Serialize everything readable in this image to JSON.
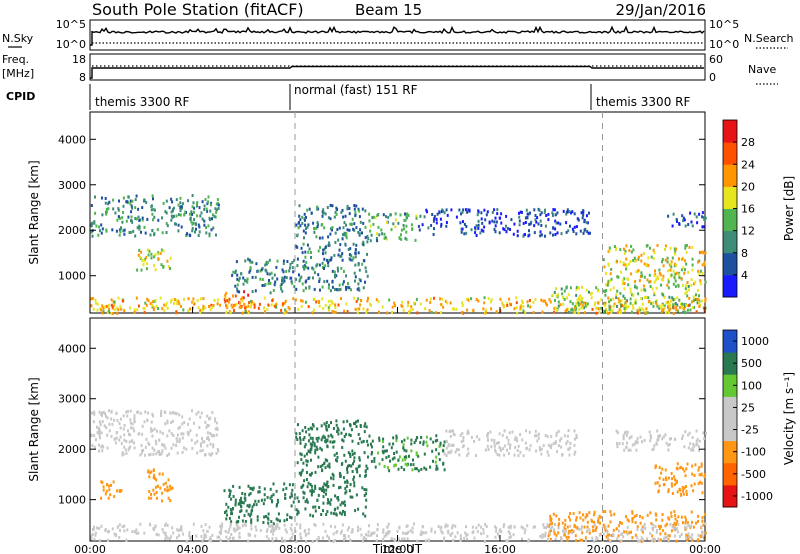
{
  "header": {
    "station": "South Pole Station (fitACF)",
    "beam": "Beam 15",
    "date": "29/Jan/2016"
  },
  "strips": {
    "nsky": {
      "label": "N.Sky",
      "ticks": [
        "10^5",
        "10^0"
      ]
    },
    "nsearch": {
      "label": "N.Search",
      "ticks": [
        "10^5",
        "10^0"
      ]
    },
    "freq": {
      "label_top": "Freq.",
      "label_unit": "[MHz]",
      "ticks": [
        "18",
        "8"
      ]
    },
    "nave": {
      "label": "Nave",
      "ticks": [
        "60",
        "0"
      ]
    },
    "cpid": {
      "label": "CPID",
      "segments": [
        "themis 3300 RF",
        "normal (fast) 151 RF",
        "themis 3300 RF"
      ]
    }
  },
  "colors": {
    "power": [
      "#1a1aff",
      "#1e50a0",
      "#3c8c78",
      "#50b450",
      "#e6e61e",
      "#ff9600",
      "#ff5000",
      "#e61414"
    ],
    "velocity": [
      "#e61414",
      "#ff6400",
      "#ff9614",
      "#c8c8c8",
      "#c8c8c8",
      "#64c832",
      "#287850",
      "#1e50c8"
    ]
  },
  "chart_data": [
    {
      "type": "heatmap",
      "title": "",
      "ylabel": "Slant Range [km]",
      "xlabel": "",
      "x_ticks": [
        "00:00",
        "04:00",
        "08:00",
        "12:00",
        "16:00",
        "20:00",
        "00:00"
      ],
      "y_ticks": [
        "1000",
        "2000",
        "3000",
        "4000"
      ],
      "xlim": [
        0,
        24
      ],
      "ylim": [
        180,
        4600
      ],
      "colorbar": {
        "label": "Power [dB]",
        "ticks": [
          "4",
          "8",
          "12",
          "16",
          "20",
          "24",
          "28"
        ],
        "range": [
          0,
          32
        ]
      },
      "mode_boundaries_ut": [
        8.0,
        20.0
      ],
      "regions": [
        {
          "t0": 0.0,
          "t1": 5.0,
          "r0": 1900,
          "r1": 2800,
          "value": 10
        },
        {
          "t0": 1.8,
          "t1": 3.2,
          "r0": 1150,
          "r1": 1650,
          "value": 17
        },
        {
          "t0": 5.2,
          "t1": 6.2,
          "r0": 250,
          "r1": 700,
          "value": 26
        },
        {
          "t0": 5.5,
          "t1": 8.0,
          "r0": 650,
          "r1": 1400,
          "value": 9
        },
        {
          "t0": 8.0,
          "t1": 10.8,
          "r0": 700,
          "r1": 2600,
          "value": 9
        },
        {
          "t0": 10.8,
          "t1": 12.8,
          "r0": 1800,
          "r1": 2400,
          "value": 12
        },
        {
          "t0": 12.8,
          "t1": 19.5,
          "r0": 1900,
          "r1": 2500,
          "value": 5
        },
        {
          "t0": 18.0,
          "t1": 24.0,
          "r0": 200,
          "r1": 800,
          "value": 15
        },
        {
          "t0": 20.0,
          "t1": 24.0,
          "r0": 800,
          "r1": 1700,
          "value": 18
        },
        {
          "t0": 22.5,
          "t1": 24.0,
          "r0": 2100,
          "r1": 2450,
          "value": 6
        },
        {
          "t0": 0.0,
          "t1": 24.0,
          "r0": 200,
          "r1": 550,
          "value": 20
        }
      ]
    },
    {
      "type": "heatmap",
      "title": "",
      "ylabel": "Slant Range [km]",
      "xlabel": "Time UT",
      "x_ticks": [
        "00:00",
        "04:00",
        "08:00",
        "12:00",
        "16:00",
        "20:00",
        "00:00"
      ],
      "y_ticks": [
        "1000",
        "2000",
        "3000",
        "4000"
      ],
      "xlim": [
        0,
        24
      ],
      "ylim": [
        180,
        4600
      ],
      "colorbar": {
        "label": "Velocity [m s⁻¹]",
        "ticks": [
          "-1000",
          "-500",
          "-100",
          "-25",
          "25",
          "100",
          "500",
          "1000"
        ]
      },
      "mode_boundaries_ut": [
        8.0,
        20.0
      ],
      "regions": [
        {
          "t0": 0.0,
          "t1": 5.0,
          "r0": 1900,
          "r1": 2800,
          "value": 0
        },
        {
          "t0": 0.3,
          "t1": 1.2,
          "r0": 1000,
          "r1": 1400,
          "value": -300
        },
        {
          "t0": 2.2,
          "t1": 3.2,
          "r0": 1000,
          "r1": 1650,
          "value": -300
        },
        {
          "t0": 5.2,
          "t1": 8.0,
          "r0": 550,
          "r1": 1350,
          "value": 300
        },
        {
          "t0": 8.0,
          "t1": 10.8,
          "r0": 700,
          "r1": 2600,
          "value": 300
        },
        {
          "t0": 10.8,
          "t1": 13.8,
          "r0": 1600,
          "r1": 2300,
          "value": 150
        },
        {
          "t0": 13.8,
          "t1": 19.0,
          "r0": 1900,
          "r1": 2400,
          "value": 0
        },
        {
          "t0": 17.8,
          "t1": 24.0,
          "r0": 200,
          "r1": 800,
          "value": -300
        },
        {
          "t0": 22.0,
          "t1": 24.0,
          "r0": 1100,
          "r1": 1750,
          "value": -300
        },
        {
          "t0": 20.5,
          "t1": 24.0,
          "r0": 2000,
          "r1": 2400,
          "value": 0
        },
        {
          "t0": 0.0,
          "t1": 24.0,
          "r0": 200,
          "r1": 550,
          "value": 0
        }
      ]
    }
  ]
}
